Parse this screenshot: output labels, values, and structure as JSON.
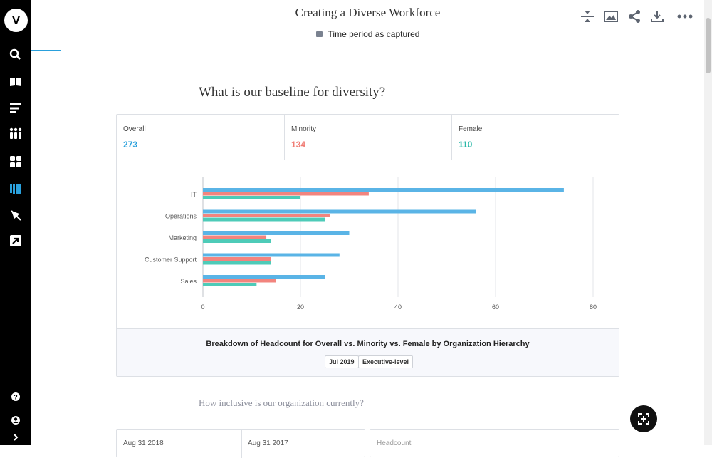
{
  "sidebar": {
    "logo": "V",
    "items": [
      "search-icon",
      "book-icon",
      "list-icon",
      "apps-icon",
      "dashboard-icon",
      "stack-icon",
      "pen-icon",
      "export-icon"
    ],
    "help_icon": "question-icon",
    "user_icon": "user-icon",
    "expand_icon": "chevron-right-icon"
  },
  "header": {
    "title": "Creating a Diverse Workforce",
    "time_period": "Time period as captured",
    "tools": [
      "collapse-icon",
      "image-icon",
      "share-icon",
      "download-icon",
      "more-icon"
    ]
  },
  "section1": {
    "title": "What is our baseline for diversity?",
    "kpis": [
      {
        "label": "Overall",
        "value": "273",
        "color": "#2aa0dc"
      },
      {
        "label": "Minority",
        "value": "134",
        "color": "#f07c74"
      },
      {
        "label": "Female",
        "value": "110",
        "color": "#2bb8a8"
      }
    ],
    "caption": "Breakdown of Headcount for Overall vs. Minority vs. Female by Organization Hierarchy",
    "tags": [
      "Jul 2019",
      "Executive-level"
    ]
  },
  "chart_data": {
    "type": "bar",
    "orientation": "horizontal",
    "categories": [
      "IT",
      "Operations",
      "Marketing",
      "Customer Support",
      "Sales"
    ],
    "series": [
      {
        "name": "Overall",
        "color": "#5ab4e6",
        "values": [
          74,
          56,
          30,
          28,
          25
        ]
      },
      {
        "name": "Minority",
        "color": "#f2847e",
        "values": [
          34,
          26,
          13,
          14,
          15
        ]
      },
      {
        "name": "Female",
        "color": "#4ecbb8",
        "values": [
          20,
          25,
          14,
          14,
          11
        ]
      }
    ],
    "xlim": [
      0,
      80
    ],
    "xticks": [
      0,
      20,
      40,
      60,
      80
    ],
    "grid": true
  },
  "section2": {
    "title": "How inclusive is our organization currently?",
    "cols": [
      "Aug 31 2018",
      "Aug 31 2017"
    ],
    "right_label": "Headcount"
  },
  "fullscreen_icon": "fullscreen-icon"
}
